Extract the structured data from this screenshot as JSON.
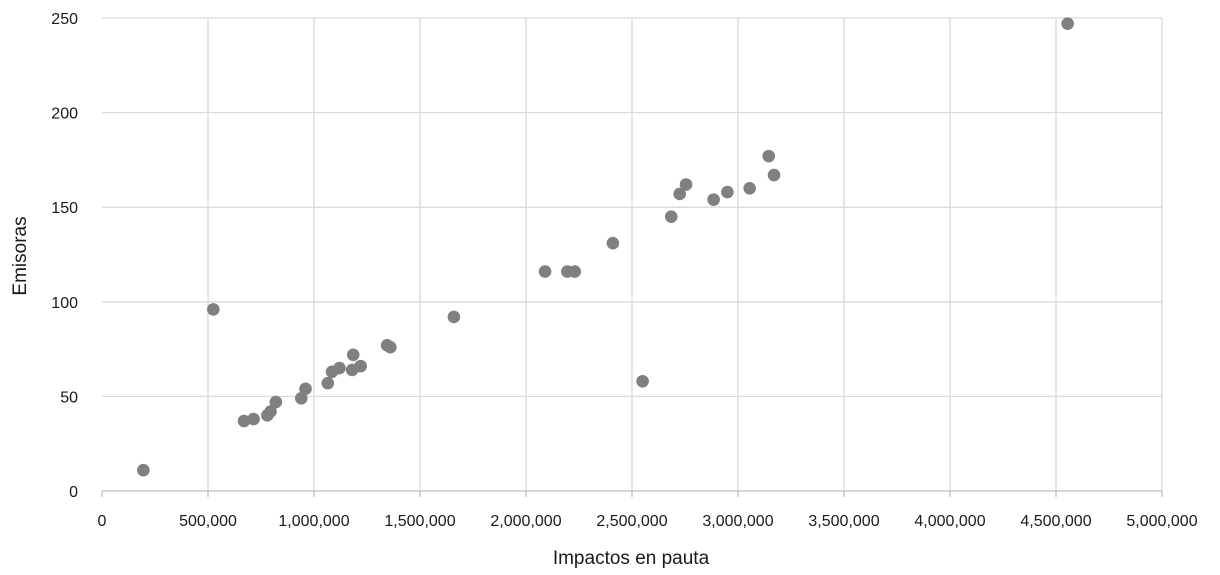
{
  "chart_data": {
    "type": "scatter",
    "title": "",
    "xlabel": "Impactos en pauta",
    "ylabel": "Emisoras",
    "xlim": [
      0,
      5000000
    ],
    "ylim": [
      0,
      250
    ],
    "x_ticks": [
      0,
      500000,
      1000000,
      1500000,
      2000000,
      2500000,
      3000000,
      3500000,
      4000000,
      4500000,
      5000000
    ],
    "x_tick_labels": [
      "0",
      "500,000",
      "1,000,000",
      "1,500,000",
      "2,000,000",
      "2,500,000",
      "3,000,000",
      "3,500,000",
      "4,000,000",
      "4,500,000",
      "5,000,000"
    ],
    "y_ticks": [
      0,
      50,
      100,
      150,
      200,
      250
    ],
    "y_tick_labels": [
      "0",
      "50",
      "100",
      "150",
      "200",
      "250"
    ],
    "grid": true,
    "legend": "none",
    "marker_color": "#808080",
    "points": [
      {
        "x": 195000,
        "y": 11
      },
      {
        "x": 525000,
        "y": 96
      },
      {
        "x": 670000,
        "y": 37
      },
      {
        "x": 715000,
        "y": 38
      },
      {
        "x": 780000,
        "y": 40
      },
      {
        "x": 795000,
        "y": 42
      },
      {
        "x": 820000,
        "y": 47
      },
      {
        "x": 940000,
        "y": 49
      },
      {
        "x": 960000,
        "y": 54
      },
      {
        "x": 1065000,
        "y": 57
      },
      {
        "x": 1085000,
        "y": 63
      },
      {
        "x": 1120000,
        "y": 65
      },
      {
        "x": 1180000,
        "y": 64
      },
      {
        "x": 1185000,
        "y": 72
      },
      {
        "x": 1220000,
        "y": 66
      },
      {
        "x": 1345000,
        "y": 77
      },
      {
        "x": 1360000,
        "y": 76
      },
      {
        "x": 1660000,
        "y": 92
      },
      {
        "x": 2090000,
        "y": 116
      },
      {
        "x": 2195000,
        "y": 116
      },
      {
        "x": 2230000,
        "y": 116
      },
      {
        "x": 2410000,
        "y": 131
      },
      {
        "x": 2550000,
        "y": 58
      },
      {
        "x": 2685000,
        "y": 145
      },
      {
        "x": 2725000,
        "y": 157
      },
      {
        "x": 2755000,
        "y": 162
      },
      {
        "x": 2885000,
        "y": 154
      },
      {
        "x": 2950000,
        "y": 158
      },
      {
        "x": 3055000,
        "y": 160
      },
      {
        "x": 3145000,
        "y": 177
      },
      {
        "x": 3170000,
        "y": 167
      },
      {
        "x": 4555000,
        "y": 247
      }
    ]
  }
}
